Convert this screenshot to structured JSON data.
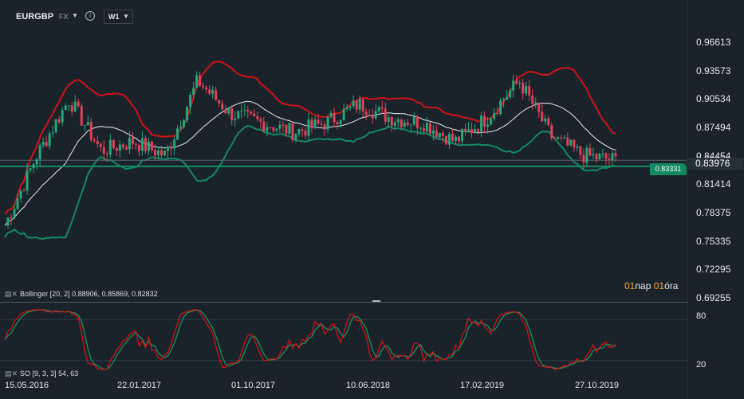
{
  "toolbar": {
    "symbol": "EURGBP",
    "market": "FX",
    "timeframe": "W1",
    "info_icon": "info-icon",
    "dropdown_icon": "caret-down-icon"
  },
  "price_axis": [
    "0.96613",
    "0.93573",
    "0.90534",
    "0.87494",
    "0.84454",
    "0.83976",
    "0.81414",
    "0.78375",
    "0.75335",
    "0.72295",
    "0.69255"
  ],
  "current_price_tag": "0.83331",
  "last_price_tag": "0.83976",
  "timer": {
    "v1": "01",
    "u1": "nap",
    "v2": "01",
    "u2": "óra"
  },
  "indicators": {
    "bollinger": "Bollinger  [20, 2]  0.88906,  0.85869,  0.82832",
    "stochastic": "SO [9, 3, 3]  54,  63"
  },
  "so_axis": [
    "80",
    "20"
  ],
  "x_axis": [
    "15.05.2016",
    "22.01.2017",
    "01.10.2017",
    "10.06.2018",
    "17.02.2019",
    "27.10.2019"
  ],
  "colors": {
    "background": "#1b232a",
    "bull": "#26a67a",
    "bear": "#e0405a",
    "upper_band": "#d0121b",
    "lower_band": "#138a62",
    "middle_band": "#e6ebef",
    "so_k": "#d0121b",
    "so_d": "#1f8f5e"
  },
  "chart_data": {
    "type": "candlestick",
    "symbol": "EURGBP",
    "timeframe": "W1",
    "ylim": [
      0.69255,
      0.96613
    ],
    "x_labels": [
      "15.05.2016",
      "22.01.2017",
      "01.10.2017",
      "10.06.2018",
      "17.02.2019",
      "27.10.2019"
    ],
    "close_trend": [
      [
        "2016-05",
        0.77
      ],
      [
        "2016-07",
        0.845
      ],
      [
        "2016-10",
        0.905
      ],
      [
        "2016-12",
        0.85
      ],
      [
        "2017-03",
        0.86
      ],
      [
        "2017-05",
        0.845
      ],
      [
        "2017-08",
        0.925
      ],
      [
        "2017-10",
        0.89
      ],
      [
        "2018-01",
        0.88
      ],
      [
        "2018-04",
        0.87
      ],
      [
        "2018-06",
        0.88
      ],
      [
        "2018-08",
        0.9
      ],
      [
        "2018-11",
        0.885
      ],
      [
        "2019-01",
        0.88
      ],
      [
        "2019-03",
        0.86
      ],
      [
        "2019-05",
        0.885
      ],
      [
        "2019-08",
        0.925
      ],
      [
        "2019-10",
        0.865
      ],
      [
        "2019-12",
        0.845
      ],
      [
        "2020-01",
        0.84
      ]
    ],
    "bollinger": {
      "period": 20,
      "stddev": 2,
      "upper": 0.88906,
      "middle": 0.85869,
      "lower": 0.82832
    },
    "stochastic": {
      "k": 9,
      "d": 3,
      "slowing": 3,
      "k_value": 54,
      "d_value": 63,
      "levels": [
        80,
        20
      ]
    },
    "horizontal_line": 0.83331,
    "last_price": 0.83976
  }
}
